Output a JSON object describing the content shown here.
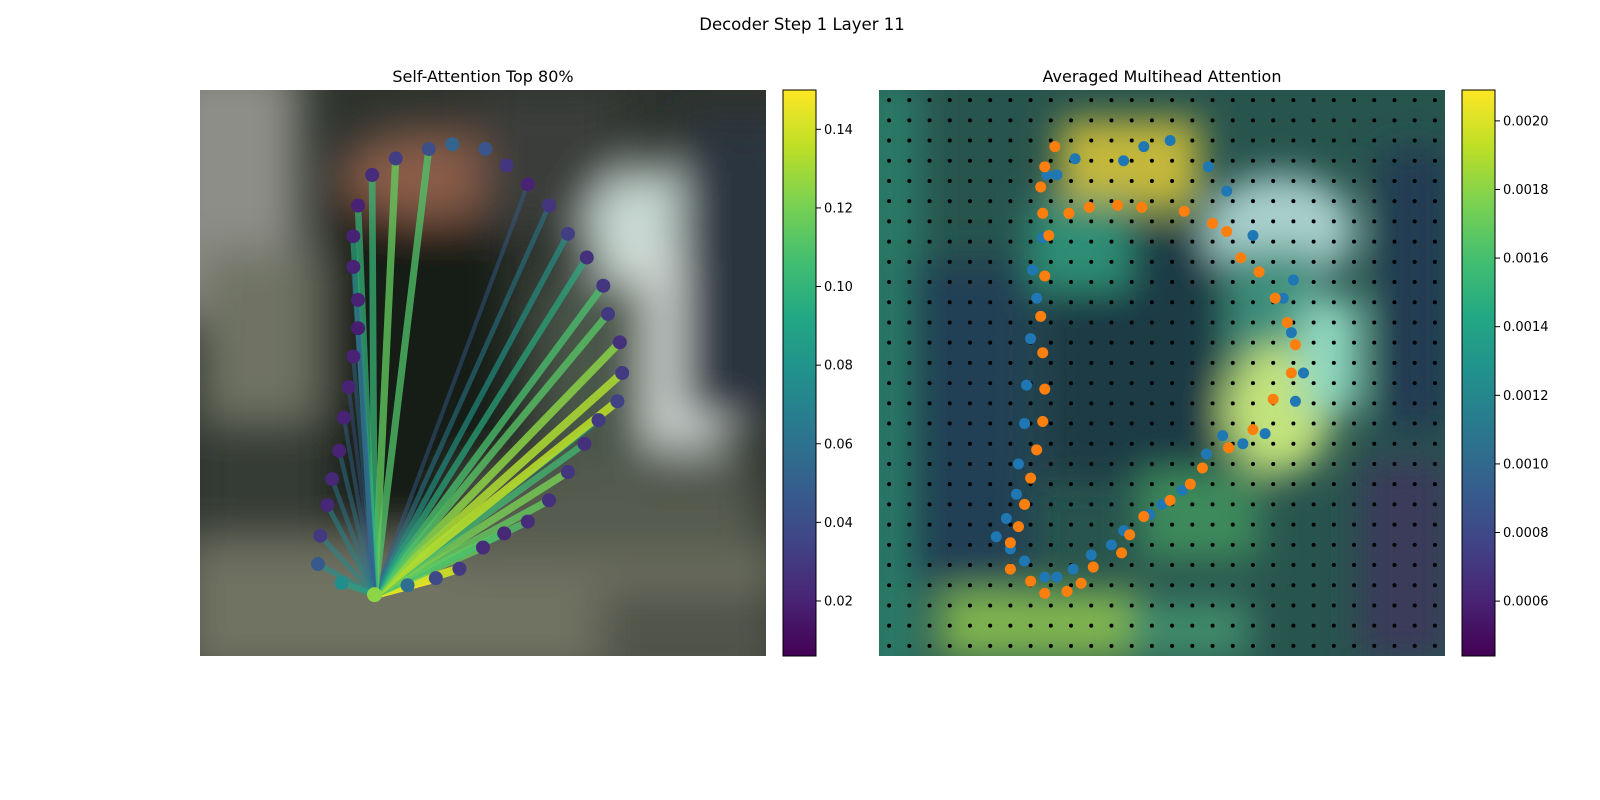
{
  "figure": {
    "title": "Decoder Step 1 Layer 11"
  },
  "chart_data": [
    {
      "type": "scatter",
      "title": "Self-Attention Top 80%",
      "xlim": [
        0,
        24
      ],
      "ylim": [
        24,
        0
      ],
      "axes": "off",
      "colormap": "viridis",
      "colorbar": {
        "range": [
          0.006,
          0.15
        ],
        "ticks": [
          "0.02",
          "0.04",
          "0.06",
          "0.08",
          "0.10",
          "0.12",
          "0.14"
        ]
      },
      "query_point": [
        7.4,
        21.4
      ],
      "contour_points": [
        [
          7.4,
          21.4,
          0.125
        ],
        [
          8.8,
          21.0,
          0.058
        ],
        [
          10.0,
          20.7,
          0.038
        ],
        [
          11.0,
          20.3,
          0.03
        ],
        [
          12.0,
          19.4,
          0.024
        ],
        [
          12.9,
          18.8,
          0.022
        ],
        [
          13.9,
          18.3,
          0.024
        ],
        [
          14.8,
          17.4,
          0.026
        ],
        [
          15.6,
          16.2,
          0.028
        ],
        [
          16.3,
          15.0,
          0.026
        ],
        [
          16.9,
          14.0,
          0.03
        ],
        [
          17.7,
          13.2,
          0.034
        ],
        [
          17.9,
          12.0,
          0.03
        ],
        [
          17.8,
          10.7,
          0.026
        ],
        [
          17.3,
          9.5,
          0.03
        ],
        [
          17.1,
          8.3,
          0.028
        ],
        [
          16.4,
          7.1,
          0.026
        ],
        [
          15.6,
          6.1,
          0.032
        ],
        [
          14.8,
          4.9,
          0.028
        ],
        [
          13.9,
          4.0,
          0.02
        ],
        [
          13.0,
          3.2,
          0.028
        ],
        [
          12.1,
          2.5,
          0.044
        ],
        [
          10.7,
          2.3,
          0.052
        ],
        [
          9.7,
          2.5,
          0.04
        ],
        [
          8.3,
          2.9,
          0.032
        ],
        [
          7.3,
          3.6,
          0.024
        ],
        [
          6.7,
          4.9,
          0.02
        ],
        [
          6.5,
          6.2,
          0.02
        ],
        [
          6.5,
          7.5,
          0.02
        ],
        [
          6.7,
          8.9,
          0.02
        ],
        [
          6.7,
          10.1,
          0.018
        ],
        [
          6.5,
          11.3,
          0.02
        ],
        [
          6.3,
          12.6,
          0.02
        ],
        [
          6.1,
          13.9,
          0.02
        ],
        [
          5.9,
          15.3,
          0.02
        ],
        [
          5.6,
          16.5,
          0.022
        ],
        [
          5.4,
          17.6,
          0.022
        ],
        [
          5.1,
          18.9,
          0.03
        ],
        [
          5.0,
          20.1,
          0.046
        ],
        [
          6.0,
          20.9,
          0.076
        ]
      ],
      "attention_lines": [
        {
          "to": 0,
          "weight": 0.125
        },
        {
          "to": 1,
          "weight": 0.145
        },
        {
          "to": 2,
          "weight": 0.148
        },
        {
          "to": 3,
          "weight": 0.14
        },
        {
          "to": 4,
          "weight": 0.115
        },
        {
          "to": 5,
          "weight": 0.105
        },
        {
          "to": 6,
          "weight": 0.11
        },
        {
          "to": 7,
          "weight": 0.115
        },
        {
          "to": 8,
          "weight": 0.12
        },
        {
          "to": 9,
          "weight": 0.105
        },
        {
          "to": 10,
          "weight": 0.08
        },
        {
          "to": 11,
          "weight": 0.135
        },
        {
          "to": 12,
          "weight": 0.132
        },
        {
          "to": 13,
          "weight": 0.125
        },
        {
          "to": 14,
          "weight": 0.112
        },
        {
          "to": 15,
          "weight": 0.108
        },
        {
          "to": 16,
          "weight": 0.095
        },
        {
          "to": 17,
          "weight": 0.082
        },
        {
          "to": 18,
          "weight": 0.065
        },
        {
          "to": 19,
          "weight": 0.05
        },
        {
          "to": 23,
          "weight": 0.11
        },
        {
          "to": 24,
          "weight": 0.115
        },
        {
          "to": 25,
          "weight": 0.102
        },
        {
          "to": 26,
          "weight": 0.1
        },
        {
          "to": 27,
          "weight": 0.095
        },
        {
          "to": 28,
          "weight": 0.06
        },
        {
          "to": 29,
          "weight": 0.05
        },
        {
          "to": 30,
          "weight": 0.048
        },
        {
          "to": 31,
          "weight": 0.055
        },
        {
          "to": 32,
          "weight": 0.045
        },
        {
          "to": 33,
          "weight": 0.052
        },
        {
          "to": 34,
          "weight": 0.06
        },
        {
          "to": 35,
          "weight": 0.062
        },
        {
          "to": 36,
          "weight": 0.07
        },
        {
          "to": 37,
          "weight": 0.072
        },
        {
          "to": 38,
          "weight": 0.078
        },
        {
          "to": 39,
          "weight": 0.09
        }
      ]
    },
    {
      "type": "heatmap",
      "title": "Averaged Multihead Attention",
      "grid": [
        28,
        28
      ],
      "axes": "off",
      "colormap": "viridis",
      "colorbar": {
        "range": [
          0.00044,
          0.00209
        ],
        "ticks": [
          "0.0006",
          "0.0008",
          "0.0010",
          "0.0012",
          "0.0014",
          "0.0016",
          "0.0018",
          "0.0020"
        ]
      },
      "series": [
        {
          "name": "",
          "color": "#1f77b4",
          "points": [
            [
              8.3,
              4.2
            ],
            [
              8.1,
              7.3
            ],
            [
              7.6,
              8.9
            ],
            [
              7.8,
              10.3
            ],
            [
              7.5,
              12.3
            ],
            [
              7.3,
              14.6
            ],
            [
              7.2,
              16.5
            ],
            [
              6.9,
              18.5
            ],
            [
              6.8,
              20.0
            ],
            [
              6.3,
              21.2
            ],
            [
              5.8,
              22.1
            ],
            [
              6.5,
              22.7
            ],
            [
              7.2,
              23.3
            ],
            [
              8.2,
              24.1
            ],
            [
              8.8,
              24.1
            ],
            [
              9.6,
              23.7
            ],
            [
              10.5,
              23.0
            ],
            [
              11.5,
              22.5
            ],
            [
              12.1,
              21.8
            ],
            [
              13.4,
              21.0
            ],
            [
              14.0,
              20.5
            ],
            [
              15.0,
              19.8
            ],
            [
              16.2,
              18.0
            ],
            [
              17.0,
              17.1
            ],
            [
              18.0,
              17.5
            ],
            [
              19.1,
              17.0
            ],
            [
              20.6,
              15.4
            ],
            [
              21.0,
              14.0
            ],
            [
              20.4,
              12.0
            ],
            [
              20.0,
              10.3
            ],
            [
              20.5,
              9.4
            ],
            [
              18.5,
              7.2
            ],
            [
              17.2,
              5.0
            ],
            [
              16.3,
              3.8
            ],
            [
              14.4,
              2.5
            ],
            [
              13.1,
              2.8
            ],
            [
              12.1,
              3.5
            ],
            [
              9.7,
              3.4
            ],
            [
              8.8,
              4.2
            ]
          ]
        },
        {
          "name": "",
          "color": "#ff7f0e",
          "points": [
            [
              8.7,
              2.8
            ],
            [
              8.2,
              3.8
            ],
            [
              8.0,
              4.8
            ],
            [
              8.1,
              6.1
            ],
            [
              8.4,
              7.2
            ],
            [
              8.2,
              9.2
            ],
            [
              8.0,
              11.2
            ],
            [
              8.1,
              13.0
            ],
            [
              8.2,
              14.8
            ],
            [
              8.1,
              16.4
            ],
            [
              7.8,
              17.8
            ],
            [
              7.5,
              19.2
            ],
            [
              7.2,
              20.5
            ],
            [
              6.9,
              21.6
            ],
            [
              6.5,
              22.4
            ],
            [
              6.5,
              23.7
            ],
            [
              7.5,
              24.3
            ],
            [
              8.2,
              24.9
            ],
            [
              9.3,
              24.8
            ],
            [
              10.0,
              24.4
            ],
            [
              10.6,
              23.6
            ],
            [
              12.0,
              22.9
            ],
            [
              12.4,
              22.0
            ],
            [
              13.1,
              21.1
            ],
            [
              14.4,
              20.3
            ],
            [
              15.4,
              19.5
            ],
            [
              16.0,
              18.7
            ],
            [
              17.3,
              17.7
            ],
            [
              18.5,
              16.8
            ],
            [
              19.5,
              15.3
            ],
            [
              20.4,
              14.0
            ],
            [
              20.6,
              12.6
            ],
            [
              20.2,
              11.5
            ],
            [
              19.6,
              10.3
            ],
            [
              18.8,
              9.0
            ],
            [
              17.9,
              8.3
            ],
            [
              17.2,
              7.0
            ],
            [
              16.5,
              6.6
            ],
            [
              15.1,
              6.0
            ],
            [
              13.0,
              5.8
            ],
            [
              11.8,
              5.7
            ],
            [
              10.4,
              5.8
            ],
            [
              9.4,
              6.1
            ]
          ]
        }
      ]
    }
  ]
}
